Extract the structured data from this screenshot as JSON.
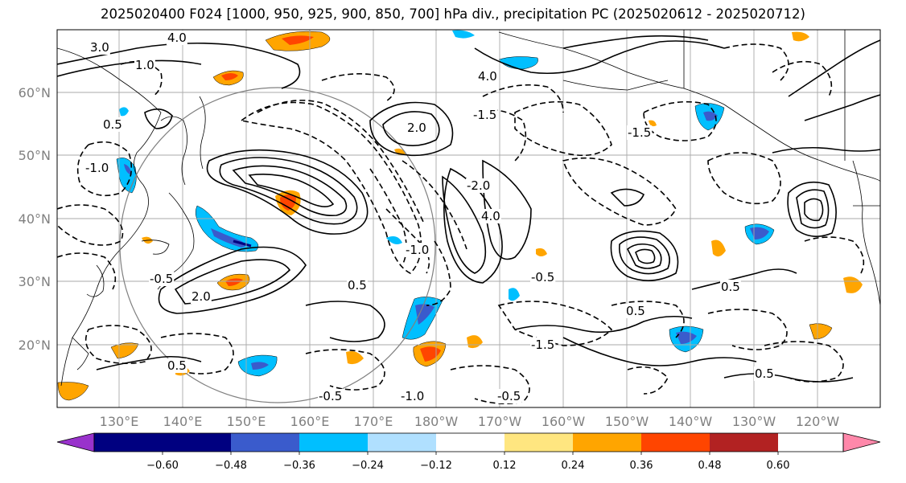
{
  "title": "2025020400 F024 [1000, 950, 925, 900, 850, 700] hPa div., precipitation PC (2025020612 - 2025020712)",
  "latitude_labels": [
    "60°N",
    "50°N",
    "40°N",
    "30°N",
    "20°N"
  ],
  "longitude_labels": [
    "130°E",
    "140°E",
    "150°E",
    "160°E",
    "170°E",
    "180°W",
    "170°W",
    "160°W",
    "150°W",
    "140°W",
    "130°W",
    "120°W"
  ],
  "colorbar": {
    "tick_labels": [
      "−0.60",
      "−0.48",
      "−0.36",
      "−0.24",
      "−0.12",
      "0.12",
      "0.24",
      "0.36",
      "0.48",
      "0.60"
    ],
    "colors": [
      "#9932cc",
      "#000080",
      "#3a5bcc",
      "#00bfff",
      "#b0e0ff",
      "#ffffff",
      "#ffe680",
      "#ffa500",
      "#ff4500",
      "#b22222",
      "#ff88aa"
    ]
  },
  "contour_labels": [
    {
      "text": "3.0",
      "kind": "solid"
    },
    {
      "text": "4.0",
      "kind": "solid"
    },
    {
      "text": "1.0",
      "kind": "solid"
    },
    {
      "text": "0.5",
      "kind": "solid"
    },
    {
      "text": "-0.5",
      "kind": "dashed"
    },
    {
      "text": "-1.0",
      "kind": "dashed"
    },
    {
      "text": "-1.5",
      "kind": "dashed"
    },
    {
      "text": "2.0",
      "kind": "solid"
    },
    {
      "text": "-2.0",
      "kind": "dashed"
    },
    {
      "text": "-0.5",
      "kind": "dashed"
    },
    {
      "text": "0.5",
      "kind": "solid"
    },
    {
      "text": "2.0",
      "kind": "solid"
    },
    {
      "text": "-1.0",
      "kind": "dashed"
    },
    {
      "text": "4.0",
      "kind": "solid"
    },
    {
      "text": "0.5",
      "kind": "solid"
    },
    {
      "text": "-1.0",
      "kind": "dashed"
    },
    {
      "text": "0.5",
      "kind": "solid"
    },
    {
      "text": "-0.5",
      "kind": "dashed"
    },
    {
      "text": "-0.5",
      "kind": "dashed"
    },
    {
      "text": "-1.5",
      "kind": "dashed"
    },
    {
      "text": "0.5",
      "kind": "solid"
    },
    {
      "text": "4.0",
      "kind": "solid"
    },
    {
      "text": "0.5",
      "kind": "solid"
    },
    {
      "text": "-1.5",
      "kind": "dashed"
    }
  ]
}
